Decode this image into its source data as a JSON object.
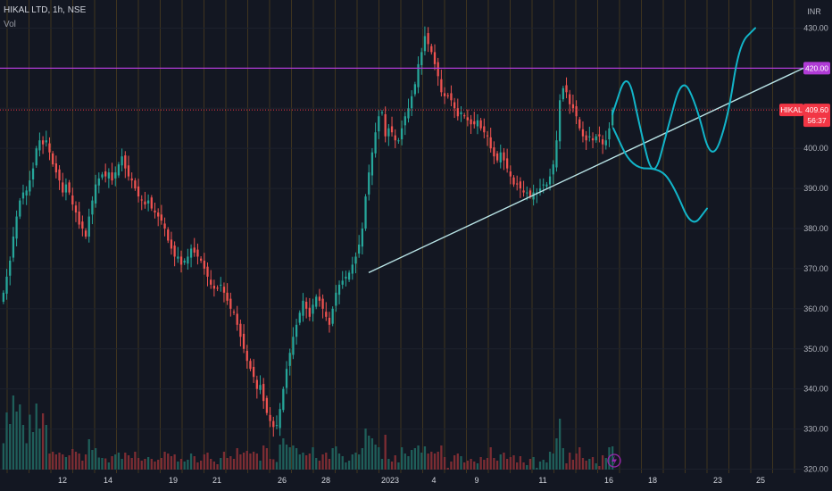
{
  "header": {
    "symbol": "HIKAL LTD, 1h, NSE",
    "volume_label": "Vol"
  },
  "colors": {
    "background": "#131722",
    "up": "#26a69a",
    "down": "#ef5350",
    "vol_up": "#1f5f5a",
    "vol_down": "#7d2d33",
    "session_lines": "#4a3c1f",
    "resistance": "#b03bd6",
    "trendline": "#b9e4e6",
    "drawing": "#12b5c9",
    "last_price": "#f23645"
  },
  "chart_data": {
    "type": "candlestick",
    "currency_label": "INR",
    "ylim": [
      319,
      437
    ],
    "y_ticks": [
      320,
      330,
      340,
      350,
      360,
      370,
      380,
      390,
      400,
      410,
      430
    ],
    "x_ticks": [
      "12",
      "14",
      "19",
      "21",
      "26",
      "28",
      "2023",
      "4",
      "9",
      "11",
      "16",
      "18",
      "23",
      "25"
    ],
    "x_tick_index": [
      70,
      121,
      194,
      243,
      316,
      365,
      437,
      486,
      534,
      608,
      682,
      731,
      804,
      852
    ],
    "resistance": {
      "price": 420.0,
      "label": "420.00"
    },
    "last_price": {
      "symbol": "HIKAL",
      "price": 409.6,
      "label": "409.60",
      "countdown": "56:37"
    },
    "trendline": {
      "from": [
        413,
        369
      ],
      "to": [
        900,
        420
      ]
    },
    "drawing_path": [
      [
        686,
        408.5
      ],
      [
        703,
        420
      ],
      [
        717,
        405
      ],
      [
        732,
        391.5
      ],
      [
        748,
        405
      ],
      [
        764,
        418
      ],
      [
        780,
        411
      ],
      [
        797,
        396
      ],
      [
        815,
        407
      ],
      [
        828,
        426
      ],
      [
        846,
        430
      ]
    ],
    "drawing_arrow": [
      [
        687,
        405
      ],
      [
        708,
        395
      ],
      [
        740,
        395
      ],
      [
        755,
        390.5
      ],
      [
        775,
        380
      ],
      [
        792,
        385
      ]
    ],
    "series_close": [
      364,
      368,
      372,
      378,
      383,
      387,
      389,
      389.5,
      392,
      395,
      400,
      402,
      401,
      402,
      399,
      396,
      394,
      392,
      389,
      391,
      389,
      386,
      384,
      381,
      380,
      378,
      383,
      387,
      391,
      392.5,
      393.5,
      393,
      394,
      392,
      394,
      396,
      398,
      395,
      393,
      392,
      390,
      388,
      387,
      386,
      387,
      385,
      384,
      383,
      382,
      380,
      377,
      375,
      373,
      373,
      371,
      372,
      373,
      375,
      374,
      373,
      372,
      370,
      368,
      366,
      365,
      365,
      366,
      364,
      362,
      360,
      359,
      356,
      353,
      350,
      347,
      345,
      343,
      340,
      341,
      337,
      334,
      332,
      330.5,
      331,
      335,
      340,
      345,
      349,
      353,
      356,
      359,
      362,
      360,
      358,
      361,
      363,
      362,
      360,
      358,
      356,
      360,
      364,
      366,
      367,
      368,
      369,
      371,
      373,
      376,
      380,
      388,
      394,
      399,
      404,
      408,
      409,
      403,
      405,
      404,
      402,
      402,
      405,
      408,
      410,
      413,
      416,
      421,
      424,
      428,
      426,
      424,
      421,
      418,
      414,
      413,
      413,
      412,
      410,
      408,
      409,
      408,
      407,
      406,
      406,
      407,
      405,
      404,
      403,
      400,
      398,
      397,
      399,
      397,
      395,
      393,
      391,
      391,
      390,
      389,
      389,
      388,
      389,
      389,
      390,
      391,
      391,
      393,
      396,
      402,
      412,
      415,
      414,
      411,
      410,
      408,
      405,
      403,
      402,
      403,
      402,
      403,
      403,
      401,
      402,
      405,
      409.6
    ]
  }
}
